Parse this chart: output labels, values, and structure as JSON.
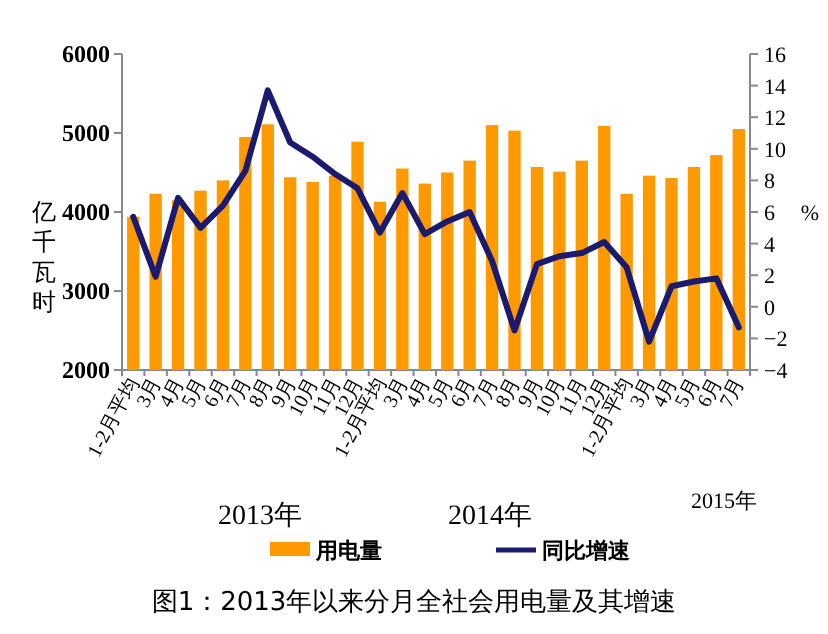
{
  "chart_data": {
    "type": "bar",
    "title": "图1：2013年以来分月全社会用电量及其增速",
    "categories": [
      "1-2月平均",
      "3月",
      "4月",
      "5月",
      "6月",
      "7月",
      "8月",
      "9月",
      "10月",
      "11月",
      "12月",
      "1-2月平均",
      "3月",
      "4月",
      "5月",
      "6月",
      "7月",
      "8月",
      "9月",
      "10月",
      "11月",
      "12月",
      "1-2月平均",
      "3月",
      "4月",
      "5月",
      "6月",
      "7月"
    ],
    "series": [
      {
        "name": "用电量",
        "color": "#ff9900",
        "values": [
          3940,
          4230,
          4150,
          4270,
          4400,
          4950,
          5110,
          4440,
          4380,
          4460,
          4890,
          4130,
          4550,
          4360,
          4500,
          4650,
          5100,
          5030,
          4570,
          4510,
          4650,
          5090,
          4230,
          4460,
          4430,
          4570,
          4720,
          5050
        ]
      },
      {
        "name": "同比增速",
        "type": "line",
        "axis": "y2",
        "color": "#1a1a6e",
        "values": [
          5.7,
          1.9,
          6.9,
          5.0,
          6.4,
          8.6,
          13.7,
          10.4,
          9.5,
          8.4,
          7.5,
          4.7,
          7.2,
          4.6,
          5.4,
          6.0,
          2.9,
          -1.5,
          2.7,
          3.2,
          3.4,
          4.1,
          2.5,
          -2.2,
          1.3,
          1.6,
          1.8,
          -1.3
        ]
      }
    ],
    "ylabel": "亿千瓦时",
    "y2label": "%",
    "ylim": [
      2000,
      6000
    ],
    "yticks": [
      2000,
      3000,
      4000,
      5000,
      6000
    ],
    "y2lim": [
      -4,
      16
    ],
    "y2ticks": [
      -4,
      -2,
      0,
      2,
      4,
      6,
      8,
      10,
      12,
      14,
      16
    ],
    "legend": "bottom",
    "grid": false,
    "annotations": [
      "2013年",
      "2014年",
      "2015年"
    ]
  }
}
